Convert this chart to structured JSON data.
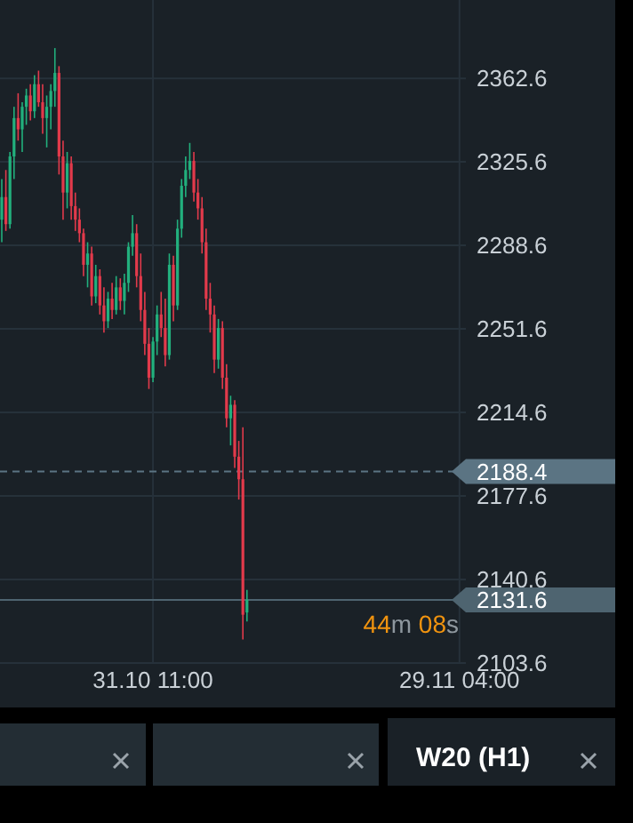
{
  "chart_data": {
    "type": "candlestick",
    "title": "W20 (H1)",
    "categories": [
      null,
      null,
      null,
      null,
      null,
      null,
      null,
      null,
      null,
      null,
      null,
      null,
      null,
      null,
      null,
      null,
      null,
      null,
      null,
      null,
      null,
      null,
      null,
      null,
      null,
      null,
      null,
      null,
      null,
      null,
      null,
      null,
      null,
      null,
      null,
      null,
      null,
      "31.10 11:00",
      null,
      null,
      null,
      null,
      null,
      null,
      null,
      null,
      null,
      null,
      null,
      null,
      null,
      null,
      null,
      null,
      null,
      null,
      null,
      null,
      null,
      null,
      null,
      null,
      null,
      null,
      null,
      null,
      null,
      null,
      null,
      null,
      null,
      null,
      null,
      null,
      null,
      null,
      null,
      null,
      null,
      null,
      null,
      null,
      null,
      null,
      null,
      null,
      null,
      null,
      null,
      null,
      null,
      null,
      null,
      null,
      null,
      null,
      null,
      null,
      null,
      null,
      null,
      null,
      null,
      null,
      null,
      null,
      null,
      null,
      null,
      null,
      null,
      null,
      "29.11 04:00",
      null,
      null
    ],
    "ohlc": [
      [
        2300,
        2318,
        2290,
        2310
      ],
      [
        2310,
        2322,
        2295,
        2298
      ],
      [
        2298,
        2330,
        2296,
        2328
      ],
      [
        2328,
        2350,
        2318,
        2345
      ],
      [
        2345,
        2356,
        2335,
        2340
      ],
      [
        2340,
        2352,
        2330,
        2350
      ],
      [
        2350,
        2358,
        2342,
        2355
      ],
      [
        2355,
        2360,
        2344,
        2348
      ],
      [
        2348,
        2364,
        2345,
        2360
      ],
      [
        2360,
        2366,
        2350,
        2352
      ],
      [
        2352,
        2360,
        2338,
        2345
      ],
      [
        2345,
        2355,
        2332,
        2350
      ],
      [
        2350,
        2360,
        2340,
        2357
      ],
      [
        2357,
        2376,
        2350,
        2365
      ],
      [
        2365,
        2368,
        2320,
        2328
      ],
      [
        2328,
        2335,
        2300,
        2312
      ],
      [
        2312,
        2330,
        2305,
        2325
      ],
      [
        2325,
        2328,
        2300,
        2306
      ],
      [
        2306,
        2312,
        2295,
        2300
      ],
      [
        2300,
        2305,
        2290,
        2294
      ],
      [
        2294,
        2296,
        2275,
        2280
      ],
      [
        2280,
        2290,
        2270,
        2285
      ],
      [
        2285,
        2288,
        2262,
        2266
      ],
      [
        2266,
        2280,
        2263,
        2275
      ],
      [
        2275,
        2278,
        2258,
        2262
      ],
      [
        2262,
        2270,
        2250,
        2255
      ],
      [
        2255,
        2268,
        2252,
        2265
      ],
      [
        2265,
        2272,
        2256,
        2260
      ],
      [
        2260,
        2275,
        2258,
        2270
      ],
      [
        2270,
        2274,
        2260,
        2264
      ],
      [
        2264,
        2276,
        2258,
        2272
      ],
      [
        2272,
        2290,
        2268,
        2288
      ],
      [
        2288,
        2302,
        2284,
        2294
      ],
      [
        2294,
        2298,
        2270,
        2275
      ],
      [
        2275,
        2285,
        2255,
        2260
      ],
      [
        2260,
        2268,
        2240,
        2245
      ],
      [
        2245,
        2252,
        2225,
        2230
      ],
      [
        2230,
        2248,
        2228,
        2246
      ],
      [
        2246,
        2262,
        2240,
        2258
      ],
      [
        2258,
        2268,
        2248,
        2252
      ],
      [
        2252,
        2265,
        2235,
        2240
      ],
      [
        2240,
        2285,
        2238,
        2280
      ],
      [
        2280,
        2284,
        2255,
        2262
      ],
      [
        2262,
        2300,
        2260,
        2296
      ],
      [
        2296,
        2318,
        2292,
        2315
      ],
      [
        2315,
        2328,
        2310,
        2322
      ],
      [
        2322,
        2334,
        2318,
        2326
      ],
      [
        2326,
        2330,
        2308,
        2312
      ],
      [
        2312,
        2318,
        2300,
        2305
      ],
      [
        2305,
        2310,
        2285,
        2290
      ],
      [
        2290,
        2296,
        2260,
        2265
      ],
      [
        2265,
        2272,
        2250,
        2258
      ],
      [
        2258,
        2262,
        2232,
        2238
      ],
      [
        2238,
        2256,
        2234,
        2252
      ],
      [
        2252,
        2255,
        2225,
        2230
      ],
      [
        2230,
        2236,
        2208,
        2212
      ],
      [
        2212,
        2222,
        2200,
        2218
      ],
      [
        2218,
        2220,
        2190,
        2195
      ],
      [
        2195,
        2202,
        2176,
        2185
      ],
      [
        2185,
        2208,
        2114,
        2125
      ],
      [
        2126,
        2136,
        2122,
        2131.6
      ],
      null,
      null,
      null,
      null,
      null,
      null,
      null,
      null,
      null,
      null,
      null,
      null,
      null,
      null,
      null,
      null,
      null,
      null,
      null,
      null,
      null,
      null,
      null,
      null,
      null,
      null,
      null,
      null,
      null,
      null,
      null,
      null,
      null,
      null,
      null,
      null,
      null,
      null,
      null,
      null,
      null,
      null,
      null,
      null,
      null,
      null,
      null,
      null,
      null,
      null,
      null,
      null,
      null,
      null
    ],
    "colors": [
      "#22b07d",
      "#e23a4b",
      "#22b07d",
      "#22b07d",
      "#e23a4b",
      "#22b07d",
      "#22b07d",
      "#e23a4b",
      "#22b07d",
      "#e23a4b",
      "#e23a4b",
      "#22b07d",
      "#22b07d",
      "#22b07d",
      "#e23a4b",
      "#e23a4b",
      "#22b07d",
      "#e23a4b",
      "#e23a4b",
      "#e23a4b",
      "#e23a4b",
      "#22b07d",
      "#e23a4b",
      "#22b07d",
      "#e23a4b",
      "#e23a4b",
      "#22b07d",
      "#e23a4b",
      "#22b07d",
      "#e23a4b",
      "#22b07d",
      "#22b07d",
      "#22b07d",
      "#e23a4b",
      "#e23a4b",
      "#e23a4b",
      "#e23a4b",
      "#22b07d",
      "#22b07d",
      "#e23a4b",
      "#e23a4b",
      "#22b07d",
      "#e23a4b",
      "#22b07d",
      "#22b07d",
      "#22b07d",
      "#22b07d",
      "#e23a4b",
      "#e23a4b",
      "#e23a4b",
      "#e23a4b",
      "#e23a4b",
      "#e23a4b",
      "#22b07d",
      "#e23a4b",
      "#e23a4b",
      "#22b07d",
      "#e23a4b",
      "#e23a4b",
      "#e23a4b",
      "#22b07d",
      null,
      null,
      null,
      null,
      null,
      null,
      null,
      null,
      null,
      null,
      null,
      null,
      null,
      null,
      null,
      null,
      null,
      null,
      null,
      null,
      null,
      null,
      null,
      null,
      null,
      null,
      null,
      null,
      null,
      null,
      null,
      null,
      null,
      null,
      null,
      null,
      null,
      null,
      null,
      null,
      null,
      null,
      null,
      null,
      null,
      null,
      null,
      null,
      null,
      null,
      null,
      null,
      null,
      null
    ],
    "ylim": [
      2103.6,
      2397.3
    ],
    "yticks": [
      2103.6,
      2140.6,
      2177.6,
      2214.6,
      2251.6,
      2288.6,
      2325.6,
      2362.6
    ],
    "grid": true,
    "ref_lines": [
      {
        "axis": "y",
        "value": 2188.4,
        "label": "2188.4",
        "color": "#5b7483",
        "line_style": "dashed"
      },
      {
        "axis": "y",
        "value": 2131.6,
        "label": "2131.6",
        "color": "#4e6470",
        "line_style": "solid"
      }
    ],
    "annotations": [
      "44m 08s"
    ]
  }
}
